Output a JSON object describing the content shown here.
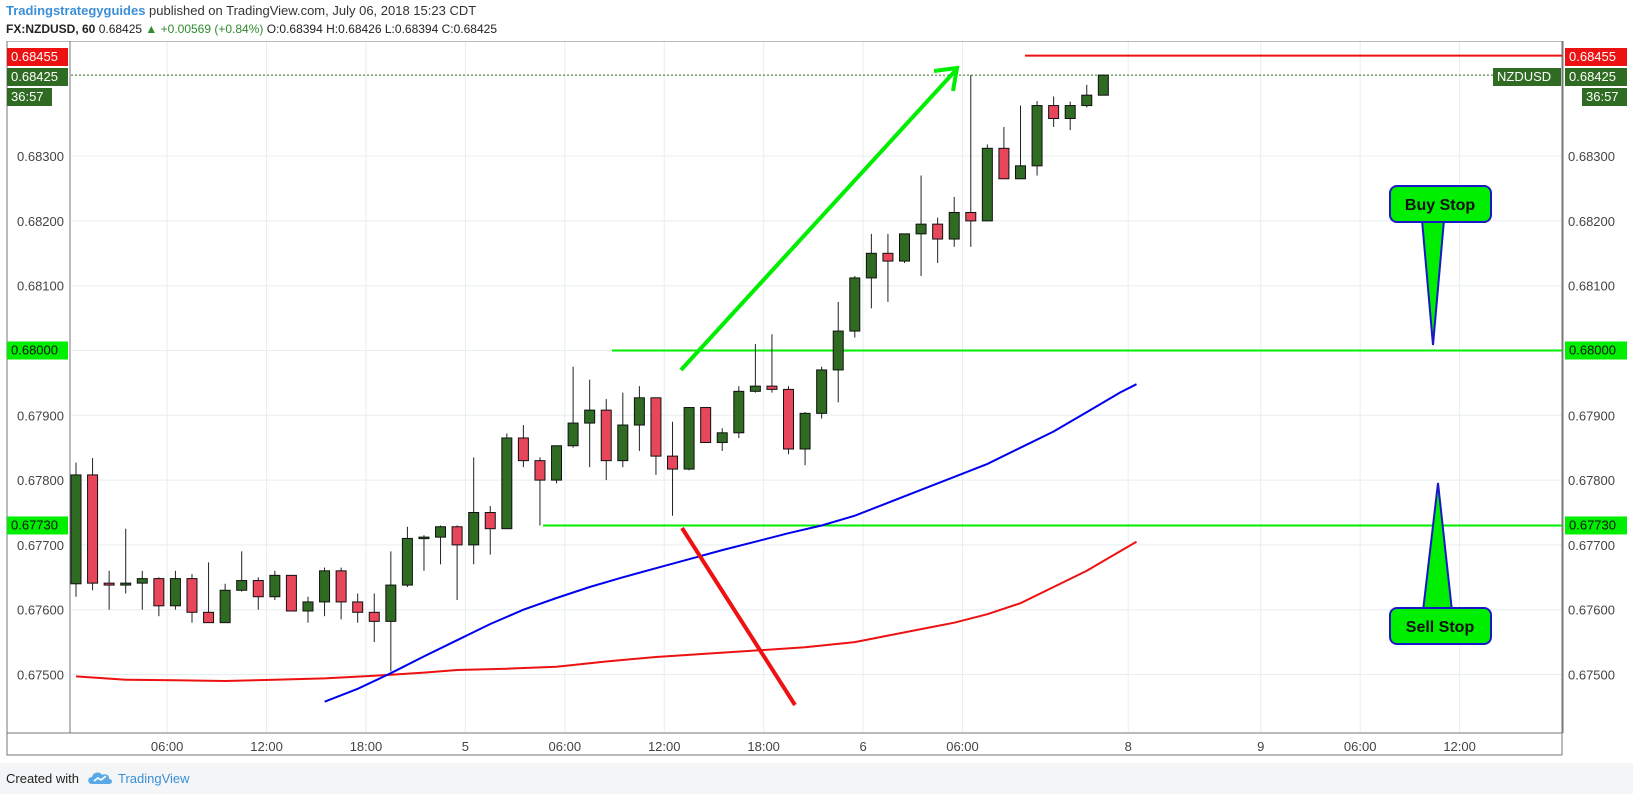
{
  "header": {
    "author": "Tradingstrategyguides",
    "published": " published on TradingView.com, July 06, 2018 15:23 CDT",
    "symbol": "FX:NZDUSD, 60",
    "last": "0.68425",
    "change": "▲ +0.00569 (+0.84%)",
    "o_label": "O:",
    "o": "0.68394",
    "h_label": "H:",
    "h": "0.68426",
    "l_label": "L:",
    "l": "0.68394",
    "c_label": "C:",
    "c": "0.68425"
  },
  "footer": {
    "created": "Created with",
    "brand": "TradingView",
    "logo_icon": "tradingview-cloud-icon"
  },
  "colors": {
    "bull": "#2f6b22",
    "bear": "#e8475b",
    "wick": "#222222",
    "ma_fast": "#0000ee",
    "ma_slow": "#ee1111",
    "level_green": "#00ee00",
    "price_red": "#ee1111",
    "price_green": "#2f6b22"
  },
  "chart_data": {
    "type": "candlestick",
    "symbol": "NZDUSD",
    "timeframe": "60",
    "ylim": [
      0.6745,
      0.6853
    ],
    "y_ticks": [
      "0.67500",
      "0.67600",
      "0.67700",
      "0.67800",
      "0.67900",
      "0.68000",
      "0.68100",
      "0.68200",
      "0.68300"
    ],
    "x_ticks": [
      {
        "i": 5.5,
        "label": "06:00"
      },
      {
        "i": 11.5,
        "label": "12:00"
      },
      {
        "i": 17.5,
        "label": "18:00"
      },
      {
        "i": 23.5,
        "label": "5"
      },
      {
        "i": 29.5,
        "label": "06:00"
      },
      {
        "i": 35.5,
        "label": "12:00"
      },
      {
        "i": 41.5,
        "label": "18:00"
      },
      {
        "i": 47.5,
        "label": "6"
      },
      {
        "i": 53.5,
        "label": "06:00"
      },
      {
        "i": 63.5,
        "label": "8"
      },
      {
        "i": 71.5,
        "label": "9"
      },
      {
        "i": 77.5,
        "label": "06:00"
      },
      {
        "i": 83.5,
        "label": "12:00"
      }
    ],
    "candles": [
      {
        "o": 0.6764,
        "h": 0.67827,
        "l": 0.6762,
        "c": 0.67808
      },
      {
        "o": 0.67808,
        "h": 0.67834,
        "l": 0.6763,
        "c": 0.67641
      },
      {
        "o": 0.67641,
        "h": 0.6766,
        "l": 0.676,
        "c": 0.67638
      },
      {
        "o": 0.67638,
        "h": 0.67725,
        "l": 0.67625,
        "c": 0.67641
      },
      {
        "o": 0.67641,
        "h": 0.6766,
        "l": 0.676,
        "c": 0.67648
      },
      {
        "o": 0.67648,
        "h": 0.6765,
        "l": 0.6759,
        "c": 0.67606
      },
      {
        "o": 0.67606,
        "h": 0.6766,
        "l": 0.676,
        "c": 0.67648
      },
      {
        "o": 0.67648,
        "h": 0.67655,
        "l": 0.6758,
        "c": 0.67596
      },
      {
        "o": 0.67596,
        "h": 0.67673,
        "l": 0.6758,
        "c": 0.6758
      },
      {
        "o": 0.6758,
        "h": 0.6764,
        "l": 0.6758,
        "c": 0.6763
      },
      {
        "o": 0.6763,
        "h": 0.6769,
        "l": 0.67628,
        "c": 0.67645
      },
      {
        "o": 0.67645,
        "h": 0.6765,
        "l": 0.676,
        "c": 0.6762
      },
      {
        "o": 0.6762,
        "h": 0.6766,
        "l": 0.67615,
        "c": 0.67653
      },
      {
        "o": 0.67653,
        "h": 0.67653,
        "l": 0.67598,
        "c": 0.67598
      },
      {
        "o": 0.67598,
        "h": 0.6762,
        "l": 0.6758,
        "c": 0.67612
      },
      {
        "o": 0.67612,
        "h": 0.67665,
        "l": 0.6759,
        "c": 0.6766
      },
      {
        "o": 0.6766,
        "h": 0.67665,
        "l": 0.67585,
        "c": 0.67612
      },
      {
        "o": 0.67612,
        "h": 0.67625,
        "l": 0.6758,
        "c": 0.67596
      },
      {
        "o": 0.67596,
        "h": 0.67625,
        "l": 0.6755,
        "c": 0.67582
      },
      {
        "o": 0.67582,
        "h": 0.6769,
        "l": 0.67505,
        "c": 0.67638
      },
      {
        "o": 0.67638,
        "h": 0.67728,
        "l": 0.67635,
        "c": 0.6771
      },
      {
        "o": 0.6771,
        "h": 0.67715,
        "l": 0.6766,
        "c": 0.67712
      },
      {
        "o": 0.67712,
        "h": 0.6773,
        "l": 0.6767,
        "c": 0.67728
      },
      {
        "o": 0.67728,
        "h": 0.6773,
        "l": 0.67615,
        "c": 0.677
      },
      {
        "o": 0.677,
        "h": 0.67835,
        "l": 0.6767,
        "c": 0.6775
      },
      {
        "o": 0.6775,
        "h": 0.6776,
        "l": 0.67685,
        "c": 0.67725
      },
      {
        "o": 0.67725,
        "h": 0.67872,
        "l": 0.67725,
        "c": 0.67865
      },
      {
        "o": 0.67865,
        "h": 0.67885,
        "l": 0.6782,
        "c": 0.6783
      },
      {
        "o": 0.6783,
        "h": 0.67835,
        "l": 0.6773,
        "c": 0.678
      },
      {
        "o": 0.678,
        "h": 0.67853,
        "l": 0.67795,
        "c": 0.67853
      },
      {
        "o": 0.67853,
        "h": 0.67975,
        "l": 0.6785,
        "c": 0.67888
      },
      {
        "o": 0.67888,
        "h": 0.67955,
        "l": 0.6782,
        "c": 0.67908
      },
      {
        "o": 0.67908,
        "h": 0.67925,
        "l": 0.678,
        "c": 0.6783
      },
      {
        "o": 0.6783,
        "h": 0.67935,
        "l": 0.6782,
        "c": 0.67885
      },
      {
        "o": 0.67885,
        "h": 0.67945,
        "l": 0.67845,
        "c": 0.67927
      },
      {
        "o": 0.67927,
        "h": 0.67927,
        "l": 0.67808,
        "c": 0.67837
      },
      {
        "o": 0.67837,
        "h": 0.6789,
        "l": 0.67745,
        "c": 0.67817
      },
      {
        "o": 0.67817,
        "h": 0.67912,
        "l": 0.67815,
        "c": 0.67912
      },
      {
        "o": 0.67912,
        "h": 0.67912,
        "l": 0.67858,
        "c": 0.67858
      },
      {
        "o": 0.67858,
        "h": 0.6788,
        "l": 0.67845,
        "c": 0.67873
      },
      {
        "o": 0.67873,
        "h": 0.67945,
        "l": 0.67865,
        "c": 0.67937
      },
      {
        "o": 0.67937,
        "h": 0.6801,
        "l": 0.67935,
        "c": 0.67945
      },
      {
        "o": 0.67945,
        "h": 0.68025,
        "l": 0.67935,
        "c": 0.6794
      },
      {
        "o": 0.6794,
        "h": 0.67945,
        "l": 0.6784,
        "c": 0.67848
      },
      {
        "o": 0.67848,
        "h": 0.67905,
        "l": 0.67823,
        "c": 0.67903
      },
      {
        "o": 0.67903,
        "h": 0.67975,
        "l": 0.67895,
        "c": 0.6797
      },
      {
        "o": 0.6797,
        "h": 0.68075,
        "l": 0.6792,
        "c": 0.6803
      },
      {
        "o": 0.6803,
        "h": 0.68115,
        "l": 0.6802,
        "c": 0.68112
      },
      {
        "o": 0.68112,
        "h": 0.6818,
        "l": 0.68065,
        "c": 0.6815
      },
      {
        "o": 0.6815,
        "h": 0.6818,
        "l": 0.68075,
        "c": 0.68138
      },
      {
        "o": 0.68138,
        "h": 0.6818,
        "l": 0.68135,
        "c": 0.6818
      },
      {
        "o": 0.6818,
        "h": 0.6827,
        "l": 0.68115,
        "c": 0.68195
      },
      {
        "o": 0.68195,
        "h": 0.68205,
        "l": 0.68135,
        "c": 0.68172
      },
      {
        "o": 0.68172,
        "h": 0.68237,
        "l": 0.6816,
        "c": 0.68213
      },
      {
        "o": 0.68213,
        "h": 0.68425,
        "l": 0.6816,
        "c": 0.682
      },
      {
        "o": 0.682,
        "h": 0.68318,
        "l": 0.682,
        "c": 0.68312
      },
      {
        "o": 0.68312,
        "h": 0.68345,
        "l": 0.68265,
        "c": 0.68265
      },
      {
        "o": 0.68265,
        "h": 0.68378,
        "l": 0.68265,
        "c": 0.68285
      },
      {
        "o": 0.68285,
        "h": 0.68385,
        "l": 0.6827,
        "c": 0.68378
      },
      {
        "o": 0.68378,
        "h": 0.68392,
        "l": 0.68345,
        "c": 0.68358
      },
      {
        "o": 0.68358,
        "h": 0.68384,
        "l": 0.6834,
        "c": 0.68378
      },
      {
        "o": 0.68378,
        "h": 0.6841,
        "l": 0.68375,
        "c": 0.68394
      },
      {
        "o": 0.68394,
        "h": 0.68426,
        "l": 0.68394,
        "c": 0.68425
      }
    ],
    "ma_fast": [
      [
        15,
        0.67458
      ],
      [
        17,
        0.67478
      ],
      [
        19,
        0.67502
      ],
      [
        21,
        0.67528
      ],
      [
        23,
        0.67553
      ],
      [
        25,
        0.67578
      ],
      [
        27,
        0.676
      ],
      [
        29,
        0.67618
      ],
      [
        31,
        0.67635
      ],
      [
        33,
        0.6765
      ],
      [
        35,
        0.67664
      ],
      [
        37,
        0.67678
      ],
      [
        39,
        0.67692
      ],
      [
        41,
        0.67705
      ],
      [
        43,
        0.67718
      ],
      [
        45,
        0.6773
      ],
      [
        47,
        0.67745
      ],
      [
        49,
        0.67765
      ],
      [
        51,
        0.67785
      ],
      [
        53,
        0.67805
      ],
      [
        55,
        0.67825
      ],
      [
        57,
        0.6785
      ],
      [
        59,
        0.67875
      ],
      [
        61,
        0.67905
      ],
      [
        63,
        0.67935
      ],
      [
        64,
        0.67948
      ]
    ],
    "ma_slow": [
      [
        0,
        0.67497
      ],
      [
        3,
        0.67492
      ],
      [
        6,
        0.67491
      ],
      [
        9,
        0.6749
      ],
      [
        12,
        0.67492
      ],
      [
        15,
        0.67494
      ],
      [
        18,
        0.67498
      ],
      [
        21,
        0.67503
      ],
      [
        23,
        0.67507
      ],
      [
        26,
        0.67509
      ],
      [
        29,
        0.67512
      ],
      [
        32,
        0.6752
      ],
      [
        35,
        0.67527
      ],
      [
        38,
        0.67532
      ],
      [
        41,
        0.67537
      ],
      [
        44,
        0.67542
      ],
      [
        47,
        0.6755
      ],
      [
        49,
        0.6756
      ],
      [
        51,
        0.6757
      ],
      [
        53,
        0.6758
      ],
      [
        55,
        0.67593
      ],
      [
        57,
        0.6761
      ],
      [
        59,
        0.67635
      ],
      [
        61,
        0.6766
      ],
      [
        63,
        0.6769
      ],
      [
        64,
        0.67705
      ]
    ],
    "levels": {
      "resistance": {
        "value": 0.68,
        "label": "0.68000"
      },
      "support": {
        "value": 0.6773,
        "label": "0.67730"
      },
      "high_line": {
        "value": 0.68455,
        "label": "0.68455"
      }
    },
    "last_price": {
      "label": "0.68425",
      "countdown": "36:57",
      "symbol": "NZDUSD"
    },
    "annotations": {
      "buy_stop": "Buy Stop",
      "sell_stop": "Sell Stop"
    }
  }
}
